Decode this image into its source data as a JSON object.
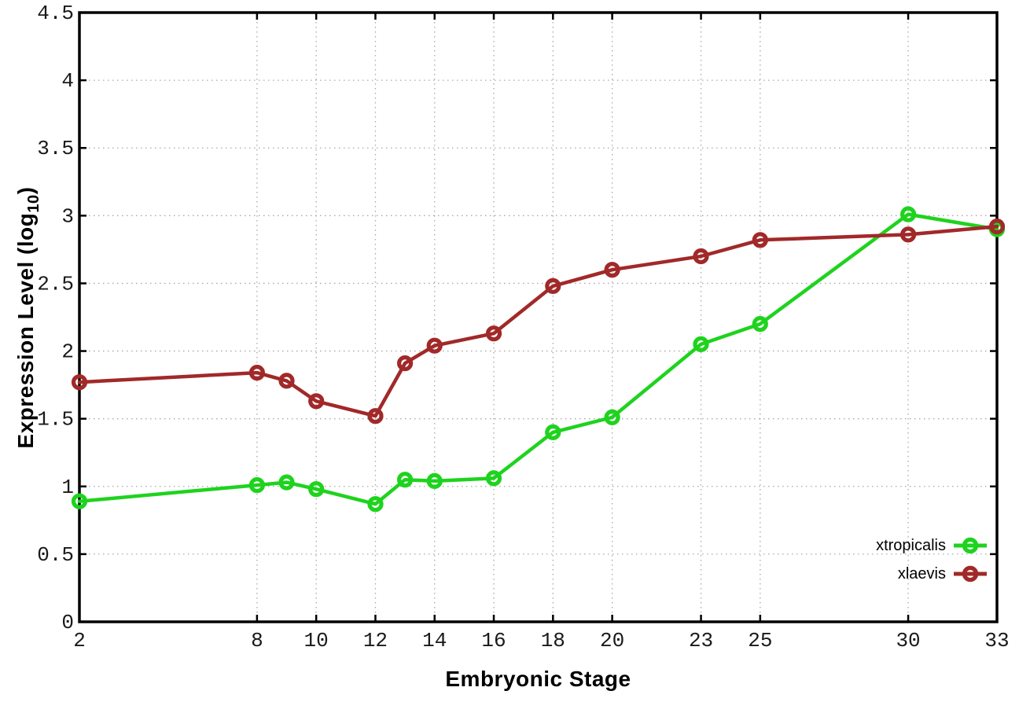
{
  "chart_data": {
    "type": "line",
    "title": "",
    "xlabel": "Embryonic Stage",
    "ylabel": "Expression Level (log10)",
    "ylabel_parts": {
      "main": "Expression Level (log",
      "sub": "10",
      "end": ")"
    },
    "xlim": [
      2,
      33
    ],
    "ylim": [
      0,
      4.5
    ],
    "x_ticks": {
      "values": [
        2,
        8,
        10,
        12,
        14,
        16,
        18,
        20,
        23,
        25,
        30,
        33
      ],
      "labels": [
        "2",
        "8",
        "10",
        "12",
        "14",
        "16",
        "18",
        "20",
        "23",
        "25",
        "30",
        "33"
      ]
    },
    "y_ticks": {
      "values": [
        0,
        0.5,
        1,
        1.5,
        2,
        2.5,
        3,
        3.5,
        4,
        4.5
      ],
      "labels": [
        "0",
        "0.5",
        "1",
        "1.5",
        "2",
        "2.5",
        "3",
        "3.5",
        "4",
        "4.5"
      ]
    },
    "grid": "dotted-both-axes",
    "legend": {
      "position": "inside-bottom-right",
      "marker": "open-circle-on-line"
    },
    "x": [
      2,
      8,
      9,
      10,
      12,
      13,
      14,
      16,
      18,
      20,
      23,
      25,
      30,
      33
    ],
    "series": [
      {
        "name": "xtropicalis",
        "color": "#1ed31e",
        "values": [
          0.89,
          1.01,
          1.03,
          0.98,
          0.87,
          1.05,
          1.04,
          1.06,
          1.4,
          1.51,
          2.05,
          2.2,
          3.01,
          2.9
        ]
      },
      {
        "name": "xlaevis",
        "color": "#a12929",
        "values": [
          1.77,
          1.84,
          1.78,
          1.63,
          1.52,
          1.91,
          2.04,
          2.13,
          2.48,
          2.6,
          2.7,
          2.82,
          2.86,
          2.92
        ]
      }
    ],
    "style": {
      "border_color": "#000000",
      "grid_color": "#a8a8a8",
      "tick_label_color": "#1a1a1a",
      "marker": "open-circle"
    }
  }
}
